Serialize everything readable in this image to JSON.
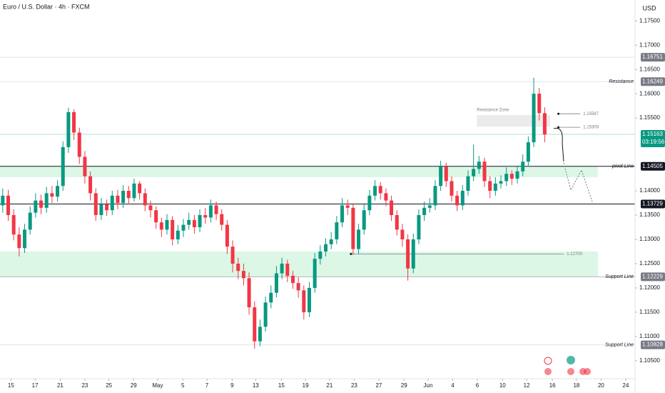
{
  "chart_data": {
    "type": "candlestick",
    "title": "Euro / U.S. Dollar · 4h · FXCM",
    "currency": "USD",
    "up_color": "#089981",
    "down_color": "#f23645",
    "grid": false,
    "xlim": [
      -0.5,
      115.5
    ],
    "ylim": [
      1.1013,
      1.1793
    ],
    "xticks": [
      {
        "value": 1.5,
        "label": "15"
      },
      {
        "value": 5.9,
        "label": "17"
      },
      {
        "value": 10.5,
        "label": "21"
      },
      {
        "value": 15,
        "label": "23"
      },
      {
        "value": 19.4,
        "label": "25"
      },
      {
        "value": 23.9,
        "label": "29"
      },
      {
        "value": 28.3,
        "label": "May"
      },
      {
        "value": 32.9,
        "label": "5"
      },
      {
        "value": 37.3,
        "label": "7"
      },
      {
        "value": 41.9,
        "label": "9"
      },
      {
        "value": 46.2,
        "label": "13"
      },
      {
        "value": 50.9,
        "label": "15"
      },
      {
        "value": 55.3,
        "label": "19"
      },
      {
        "value": 59.7,
        "label": "21"
      },
      {
        "value": 64.2,
        "label": "23"
      },
      {
        "value": 68.7,
        "label": "27"
      },
      {
        "value": 73.3,
        "label": "29"
      },
      {
        "value": 77.7,
        "label": "Jun"
      },
      {
        "value": 82.2,
        "label": "4"
      },
      {
        "value": 86.7,
        "label": "6"
      },
      {
        "value": 91.3,
        "label": "10"
      },
      {
        "value": 95.7,
        "label": "12"
      },
      {
        "value": 100.4,
        "label": "16"
      },
      {
        "value": 104.8,
        "label": "18"
      },
      {
        "value": 109.3,
        "label": "20"
      },
      {
        "value": 113.8,
        "label": "24"
      }
    ],
    "yticks": [
      {
        "value": 1.175,
        "label": "1.17500"
      },
      {
        "value": 1.17,
        "label": "1.17000"
      },
      {
        "value": 1.165,
        "label": "1.16500"
      },
      {
        "value": 1.16,
        "label": "1.16000"
      },
      {
        "value": 1.155,
        "label": "1.15500"
      },
      {
        "value": 1.14,
        "label": "1.14000"
      },
      {
        "value": 1.135,
        "label": "1.13500"
      },
      {
        "value": 1.13,
        "label": "1.13000"
      },
      {
        "value": 1.125,
        "label": "1.12500"
      },
      {
        "value": 1.12,
        "label": "1.12000"
      },
      {
        "value": 1.115,
        "label": "1.11500"
      },
      {
        "value": 1.11,
        "label": "1.11000"
      },
      {
        "value": 1.105,
        "label": "1.10500"
      }
    ],
    "open": [
      1.137,
      1.139,
      1.135,
      1.131,
      1.1282,
      1.132,
      1.1355,
      1.138,
      1.1365,
      1.1395,
      1.1388,
      1.141,
      1.149,
      1.1562,
      1.152,
      1.147,
      1.143,
      1.1395,
      1.135,
      1.1372,
      1.136,
      1.139,
      1.1375,
      1.14,
      1.1385,
      1.1415,
      1.1395,
      1.137,
      1.136,
      1.1335,
      1.132,
      1.134,
      1.13,
      1.1318,
      1.133,
      1.134,
      1.1325,
      1.135,
      1.1345,
      1.137,
      1.1352,
      1.133,
      1.1285,
      1.125,
      1.1235,
      1.122,
      1.116,
      1.109,
      1.112,
      1.117,
      1.119,
      1.123,
      1.125,
      1.1225,
      1.121,
      1.1195,
      1.115,
      1.12,
      1.126,
      1.1275,
      1.129,
      1.13,
      1.1335,
      1.137,
      1.1365,
      1.128,
      1.132,
      1.136,
      1.139,
      1.141,
      1.1395,
      1.138,
      1.135,
      1.132,
      1.13,
      1.124,
      1.13,
      1.135,
      1.1365,
      1.137,
      1.141,
      1.145,
      1.142,
      1.139,
      1.137,
      1.14,
      1.143,
      1.1445,
      1.146,
      1.142,
      1.14,
      1.1415,
      1.142,
      1.1435,
      1.1425,
      1.144,
      1.146,
      1.15,
      1.16,
      1.156
    ],
    "high": [
      1.1405,
      1.1402,
      1.1362,
      1.1325,
      1.1332,
      1.1368,
      1.1395,
      1.1392,
      1.1408,
      1.141,
      1.1422,
      1.1502,
      1.1571,
      1.1568,
      1.153,
      1.1482,
      1.144,
      1.1405,
      1.1385,
      1.1382,
      1.14,
      1.1402,
      1.1412,
      1.141,
      1.1425,
      1.142,
      1.1405,
      1.138,
      1.1368,
      1.1345,
      1.1352,
      1.1348,
      1.133,
      1.1342,
      1.1355,
      1.135,
      1.1362,
      1.1365,
      1.1382,
      1.1378,
      1.1362,
      1.134,
      1.1298,
      1.1262,
      1.125,
      1.1232,
      1.1172,
      1.1135,
      1.1182,
      1.1205,
      1.1245,
      1.1262,
      1.1258,
      1.1235,
      1.1222,
      1.1205,
      1.1212,
      1.1272,
      1.1288,
      1.1302,
      1.1315,
      1.1348,
      1.1385,
      1.1382,
      1.1372,
      1.1332,
      1.1372,
      1.1402,
      1.1422,
      1.1418,
      1.1405,
      1.139,
      1.136,
      1.1332,
      1.131,
      1.1312,
      1.1362,
      1.1378,
      1.1385,
      1.1422,
      1.1462,
      1.1458,
      1.143,
      1.14,
      1.1412,
      1.1442,
      1.1495,
      1.1472,
      1.1468,
      1.143,
      1.1428,
      1.1432,
      1.1448,
      1.1442,
      1.1452,
      1.1475,
      1.1512,
      1.1633,
      1.1612,
      1.1572
    ],
    "low": [
      1.1355,
      1.1338,
      1.1298,
      1.1265,
      1.1272,
      1.131,
      1.1345,
      1.1352,
      1.1355,
      1.1375,
      1.1378,
      1.14,
      1.1478,
      1.1505,
      1.1455,
      1.1415,
      1.138,
      1.1338,
      1.134,
      1.1348,
      1.135,
      1.1362,
      1.1365,
      1.1372,
      1.1378,
      1.1382,
      1.1358,
      1.1345,
      1.1322,
      1.1305,
      1.131,
      1.1288,
      1.129,
      1.1305,
      1.132,
      1.1312,
      1.1315,
      1.1332,
      1.1335,
      1.134,
      1.1318,
      1.127,
      1.1232,
      1.1218,
      1.1205,
      1.1145,
      1.1075,
      1.108,
      1.111,
      1.1158,
      1.118,
      1.1218,
      1.1212,
      1.1198,
      1.118,
      1.1135,
      1.114,
      1.119,
      1.1248,
      1.1265,
      1.128,
      1.129,
      1.1325,
      1.135,
      1.1268,
      1.127,
      1.131,
      1.135,
      1.138,
      1.1382,
      1.1368,
      1.1338,
      1.1308,
      1.1285,
      1.1215,
      1.123,
      1.129,
      1.1338,
      1.1355,
      1.136,
      1.14,
      1.1408,
      1.1378,
      1.1358,
      1.136,
      1.139,
      1.142,
      1.1435,
      1.1408,
      1.1385,
      1.139,
      1.1405,
      1.141,
      1.1412,
      1.1415,
      1.143,
      1.145,
      1.149,
      1.1545,
      1.15
    ],
    "close": [
      1.139,
      1.135,
      1.131,
      1.1282,
      1.132,
      1.1355,
      1.138,
      1.1365,
      1.1395,
      1.1388,
      1.141,
      1.149,
      1.1562,
      1.152,
      1.147,
      1.143,
      1.1395,
      1.135,
      1.1372,
      1.136,
      1.139,
      1.1375,
      1.14,
      1.1385,
      1.1415,
      1.1395,
      1.137,
      1.136,
      1.1335,
      1.132,
      1.134,
      1.13,
      1.1318,
      1.133,
      1.134,
      1.1325,
      1.135,
      1.1345,
      1.137,
      1.1352,
      1.133,
      1.1285,
      1.125,
      1.1235,
      1.122,
      1.116,
      1.109,
      1.112,
      1.117,
      1.119,
      1.123,
      1.125,
      1.1225,
      1.121,
      1.1195,
      1.115,
      1.12,
      1.126,
      1.1275,
      1.129,
      1.13,
      1.1335,
      1.137,
      1.1365,
      1.128,
      1.132,
      1.136,
      1.139,
      1.141,
      1.1395,
      1.138,
      1.135,
      1.132,
      1.13,
      1.124,
      1.13,
      1.135,
      1.1365,
      1.137,
      1.141,
      1.145,
      1.142,
      1.139,
      1.137,
      1.14,
      1.143,
      1.1445,
      1.146,
      1.142,
      1.14,
      1.1415,
      1.142,
      1.1435,
      1.1425,
      1.144,
      1.146,
      1.15,
      1.16,
      1.156,
      1.1516
    ],
    "zones": [
      {
        "from": 1.14505,
        "to": 1.1428,
        "color": "#dcf7e6"
      },
      {
        "from": 1.1275,
        "to": 1.12229,
        "color": "#dcf7e6"
      }
    ],
    "resistance_zone": {
      "label": "Resistance Zone",
      "from": 1.1556,
      "to": 1.1532,
      "x": [
        86.6,
        100
      ],
      "color": "#ebebeb"
    },
    "annotations": [
      {
        "value": 1.15587,
        "x": [
          101.5,
          105.5
        ]
      },
      {
        "value": 1.15309,
        "x": [
          101.5,
          105.5
        ]
      },
      {
        "value": 1.127,
        "label": "1.12700",
        "x": [
          63.6,
          102.5
        ]
      }
    ],
    "levels": [
      {
        "value": 1.16751,
        "box": "#787b86",
        "line": "#e0e3eb"
      },
      {
        "name": "Resistance",
        "value": 1.16249,
        "box": "#787b86",
        "line": "#e0e3eb"
      },
      {
        "value": 1.15163,
        "timer": "03:19:56",
        "box": "#089981",
        "line": "#b2dfd6"
      },
      {
        "name": "pivot Line",
        "value": 1.14505,
        "box": "#131722",
        "line": "#131722"
      },
      {
        "value": 1.13729,
        "box": "#131722",
        "line": "#131722"
      },
      {
        "name": "Support Line",
        "value": 1.12229,
        "box": "#787b86",
        "line": "#b2b5be"
      },
      {
        "name": "Support Line",
        "value": 1.10828,
        "box": "#787b86",
        "line": "#e0e3eb"
      }
    ]
  }
}
